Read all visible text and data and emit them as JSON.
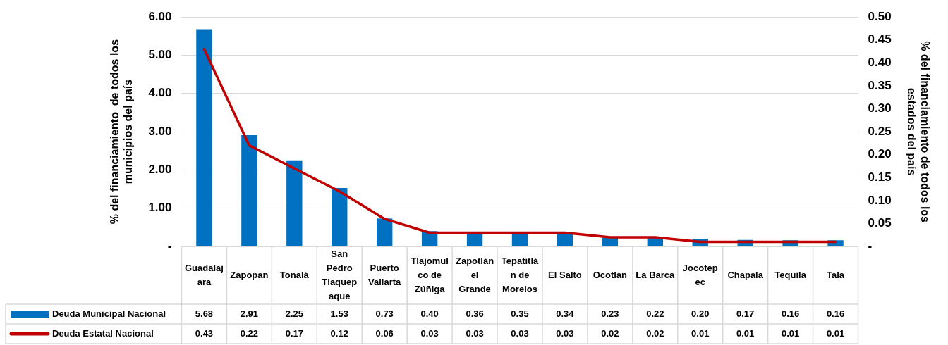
{
  "chart_data": {
    "type": "bar",
    "ylabel": "% del financiamiento  de todos los municipios del país",
    "y2label": "% del financiamiento de todos los estados del país",
    "categories": [
      "Guadalajara",
      "Zapopan",
      "Tonalá",
      "San Pedro Tlaquepaque",
      "Puerto Vallarta",
      "Tlajomulco de Zúñiga",
      "Zapotlán el Grande",
      "Tepatitlán de Morelos",
      "El Salto",
      "Ocotlán",
      "La Barca",
      "Jocotepec",
      "Chapala",
      "Tequila",
      "Tala"
    ],
    "series": [
      {
        "name": "Deuda Municipal Nacional",
        "color": "#0070c0",
        "values": [
          5.68,
          2.91,
          2.25,
          1.53,
          0.73,
          0.4,
          0.36,
          0.35,
          0.34,
          0.23,
          0.22,
          0.2,
          0.17,
          0.16,
          0.16
        ],
        "value_labels": [
          "5.68",
          "2.91",
          "2.25",
          "1.53",
          "0.73",
          "0.40",
          "0.36",
          "0.35",
          "0.34",
          "0.23",
          "0.22",
          "0.20",
          "0.17",
          "0.16",
          "0.16"
        ]
      },
      {
        "name": "Deuda Estatal Nacional",
        "type": "line",
        "axis": "y2",
        "color": "#c00000",
        "values": [
          0.43,
          0.22,
          0.17,
          0.12,
          0.06,
          0.03,
          0.03,
          0.03,
          0.03,
          0.02,
          0.02,
          0.01,
          0.01,
          0.01,
          0.01
        ],
        "value_labels": [
          "0.43",
          "0.22",
          "0.17",
          "0.12",
          "0.06",
          "0.03",
          "0.03",
          "0.03",
          "0.03",
          "0.02",
          "0.02",
          "0.01",
          "0.01",
          "0.01",
          "0.01"
        ]
      }
    ],
    "ylim": [
      0,
      6
    ],
    "yticks": [
      {
        "value": 0,
        "label": "-"
      },
      {
        "value": 1,
        "label": "1.00"
      },
      {
        "value": 2,
        "label": "2.00"
      },
      {
        "value": 3,
        "label": "3.00"
      },
      {
        "value": 4,
        "label": "4.00"
      },
      {
        "value": 5,
        "label": "5.00"
      },
      {
        "value": 6,
        "label": "6.00"
      }
    ],
    "y2lim": [
      0,
      0.5
    ],
    "y2ticks": [
      {
        "value": 0,
        "label": "-"
      },
      {
        "value": 0.05,
        "label": "0.05"
      },
      {
        "value": 0.1,
        "label": "0.10"
      },
      {
        "value": 0.15,
        "label": "0.15"
      },
      {
        "value": 0.2,
        "label": "0.20"
      },
      {
        "value": 0.25,
        "label": "0.25"
      },
      {
        "value": 0.3,
        "label": "0.30"
      },
      {
        "value": 0.35,
        "label": "0.35"
      },
      {
        "value": 0.4,
        "label": "0.40"
      },
      {
        "value": 0.45,
        "label": "0.45"
      },
      {
        "value": 0.5,
        "label": "0.50"
      }
    ],
    "grid": "y",
    "legend": "bottom",
    "marker": "none",
    "line_style": "solid"
  }
}
